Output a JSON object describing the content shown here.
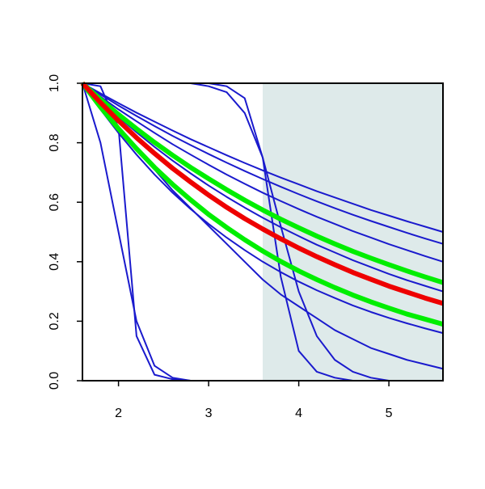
{
  "chart_data": {
    "type": "line",
    "x": [
      1.6,
      1.8,
      2.0,
      2.2,
      2.4,
      2.6,
      2.8,
      3.0,
      3.2,
      3.4,
      3.6,
      3.8,
      4.0,
      4.2,
      4.4,
      4.6,
      4.8,
      5.0,
      5.2,
      5.4,
      5.6
    ],
    "xlim": [
      1.6,
      5.6
    ],
    "ylim": [
      0,
      1
    ],
    "xticks": [
      2,
      3,
      4,
      5
    ],
    "yticks": [
      {
        "value": 0,
        "label": "0.0"
      },
      0.2,
      0.4,
      0.6,
      0.8,
      {
        "value": 1,
        "label": "1.0"
      }
    ],
    "highlight_x": [
      3.6,
      5.6
    ],
    "highlight_color": "#deeaea",
    "series": [
      {
        "color": "#1a1acd",
        "values": [
          1,
          0.966,
          0.933,
          0.901,
          0.871,
          0.841,
          0.812,
          0.785,
          0.758,
          0.732,
          0.707,
          0.683,
          0.66,
          0.637,
          0.616,
          0.595,
          0.574,
          0.555,
          0.536,
          0.518,
          0.5
        ]
      },
      {
        "color": "#1a1acd",
        "values": [
          1,
          0.962,
          0.925,
          0.89,
          0.856,
          0.823,
          0.792,
          0.762,
          0.733,
          0.705,
          0.678,
          0.652,
          0.627,
          0.603,
          0.58,
          0.558,
          0.537,
          0.517,
          0.497,
          0.478,
          0.46
        ]
      },
      {
        "color": "#1a1acd",
        "values": [
          1,
          0.955,
          0.912,
          0.872,
          0.833,
          0.795,
          0.76,
          0.726,
          0.693,
          0.662,
          0.632,
          0.604,
          0.577,
          0.551,
          0.527,
          0.503,
          0.481,
          0.459,
          0.439,
          0.419,
          0.4
        ]
      },
      {
        "color": "#1a1acd",
        "values": [
          1,
          0.942,
          0.887,
          0.835,
          0.786,
          0.74,
          0.697,
          0.656,
          0.618,
          0.582,
          0.548,
          0.516,
          0.486,
          0.457,
          0.431,
          0.405,
          0.382,
          0.359,
          0.338,
          0.319,
          0.3
        ]
      },
      {
        "color": "#1a1acd",
        "values": [
          1,
          0.912,
          0.833,
          0.76,
          0.693,
          0.632,
          0.577,
          0.527,
          0.481,
          0.439,
          0.4,
          0.365,
          0.333,
          0.304,
          0.278,
          0.253,
          0.231,
          0.211,
          0.193,
          0.176,
          0.16
        ]
      },
      {
        "color": "#1a1acd",
        "values": [
          1,
          0.92,
          0.85,
          0.78,
          0.71,
          0.64,
          0.58,
          0.52,
          0.46,
          0.4,
          0.34,
          0.29,
          0.25,
          0.21,
          0.17,
          0.14,
          0.11,
          0.09,
          0.07,
          0.055,
          0.04
        ]
      },
      {
        "color": "#1a1acd",
        "values": [
          1,
          0.99,
          0.85,
          0.15,
          0.02,
          0.005,
          0,
          0,
          0,
          0,
          0,
          0,
          0,
          0,
          0,
          0,
          0,
          0,
          0,
          0,
          0
        ]
      },
      {
        "color": "#1a1acd",
        "values": [
          1,
          0.8,
          0.5,
          0.2,
          0.05,
          0.01,
          0,
          0,
          0,
          0,
          0,
          0,
          0,
          0,
          0,
          0,
          0,
          0,
          0,
          0,
          0
        ]
      },
      {
        "color": "#1a1acd",
        "values": [
          1,
          1,
          1,
          1,
          1,
          1,
          1,
          1,
          0.99,
          0.95,
          0.75,
          0.35,
          0.1,
          0.03,
          0.01,
          0,
          0,
          0,
          0,
          0,
          0
        ]
      },
      {
        "color": "#1a1acd",
        "values": [
          1,
          1,
          1,
          1,
          1,
          1,
          1,
          0.99,
          0.97,
          0.9,
          0.75,
          0.52,
          0.3,
          0.15,
          0.07,
          0.03,
          0.01,
          0,
          0,
          0,
          0
        ]
      },
      {
        "color": "#00ee00",
        "values": [
          1,
          0.946,
          0.895,
          0.847,
          0.801,
          0.758,
          0.717,
          0.679,
          0.642,
          0.607,
          0.574,
          0.543,
          0.514,
          0.486,
          0.46,
          0.435,
          0.412,
          0.39,
          0.369,
          0.349,
          0.33
        ]
      },
      {
        "color": "#00ee00",
        "values": [
          1,
          0.92,
          0.847,
          0.78,
          0.717,
          0.66,
          0.608,
          0.559,
          0.515,
          0.474,
          0.436,
          0.401,
          0.369,
          0.34,
          0.313,
          0.288,
          0.265,
          0.244,
          0.224,
          0.207,
          0.19
        ]
      },
      {
        "color": "#ee0000",
        "values": [
          1,
          0.935,
          0.874,
          0.817,
          0.764,
          0.714,
          0.668,
          0.624,
          0.583,
          0.545,
          0.51,
          0.477,
          0.446,
          0.417,
          0.39,
          0.364,
          0.341,
          0.318,
          0.298,
          0.278,
          0.26
        ]
      }
    ]
  }
}
